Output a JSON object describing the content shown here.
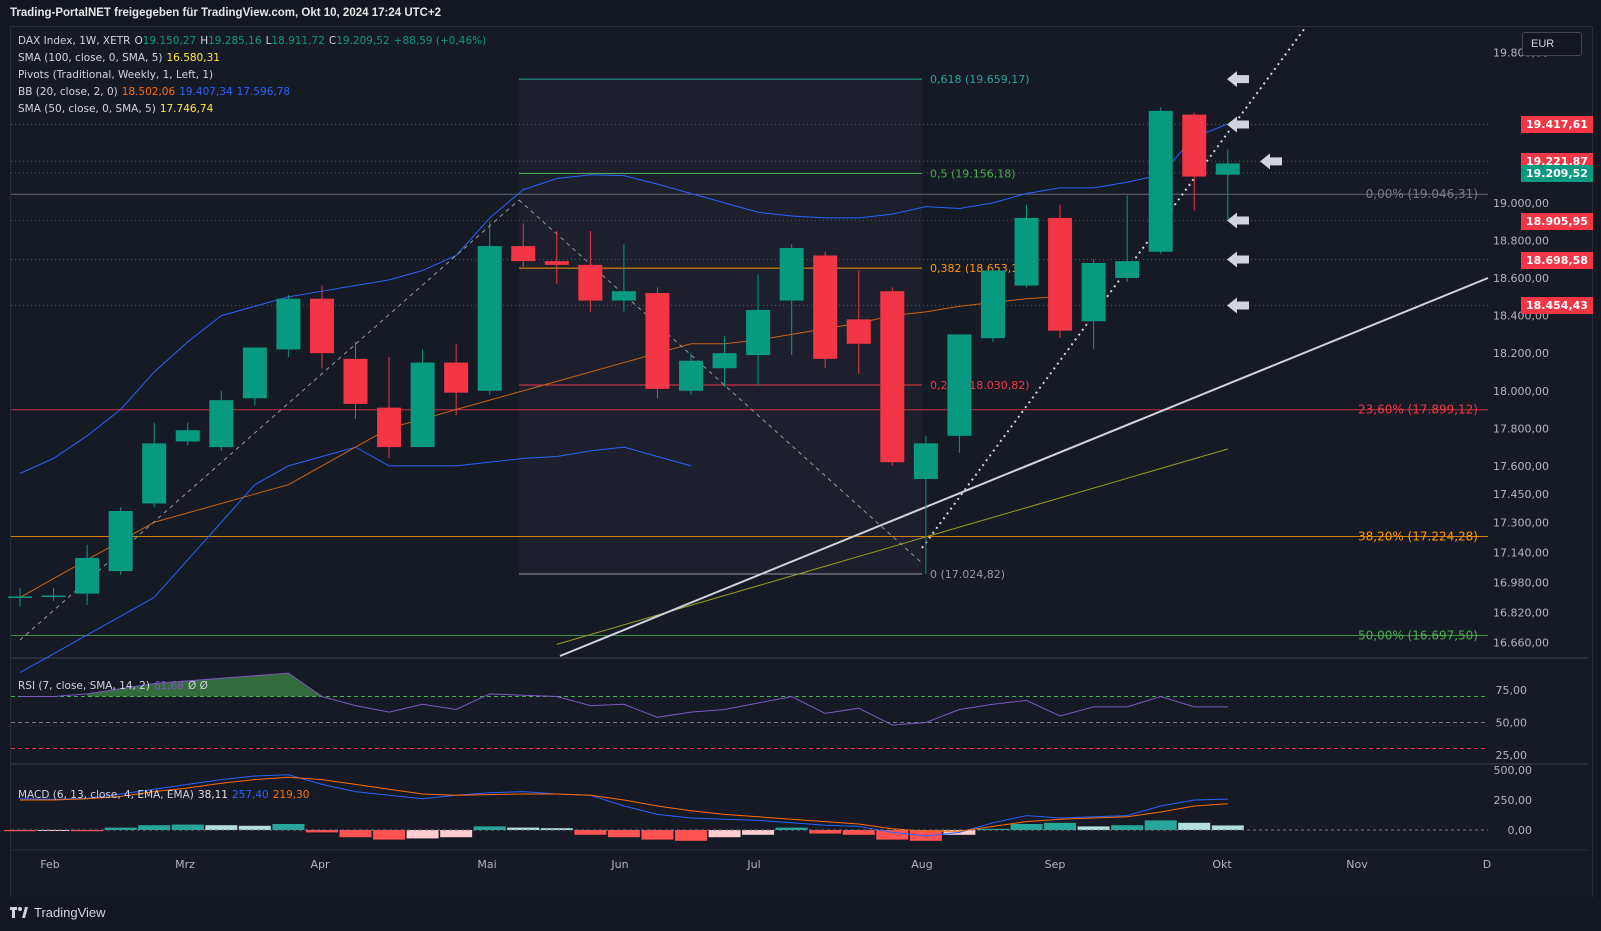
{
  "header": {
    "title": "Trading-PortalNET freigegeben für TradingView.com, Okt 10, 2024 17:24 UTC+2"
  },
  "currency": "EUR",
  "footer": {
    "brand": "TradingView"
  },
  "legend": {
    "main": {
      "name": "DAX Index, 1W, XETR",
      "o_label": "O",
      "o": "19.150,27",
      "h_label": "H",
      "h": "19.285,16",
      "l_label": "L",
      "l": "18.911,72",
      "c_label": "C",
      "c": "19.209,52",
      "chg": "+88,59 (+0,46%)"
    },
    "sma100": {
      "name": "SMA (100, close, 0, SMA, 5)",
      "value": "16.580,31"
    },
    "pivots": {
      "name": "Pivots (Traditional, Weekly, 1, Left, 1)"
    },
    "bb": {
      "name": "BB (20, close, 2, 0)",
      "v1": "18.502,06",
      "v2": "19.407,34",
      "v3": "17.596,78"
    },
    "sma50": {
      "name": "SMA (50, close, 0, SMA, 5)",
      "value": "17.746,74"
    },
    "rsi": {
      "name": "RSI (7, close, SMA, 14, 2)",
      "value": "61,68",
      "extra": "Ø Ø"
    },
    "macd": {
      "name": "MACD (6, 13, close, 4, EMA, EMA)",
      "v1": "38,11",
      "v2": "257,40",
      "v3": "219,30"
    }
  },
  "colors": {
    "up": "#089981",
    "down": "#f23645",
    "bb": "#2962ff",
    "sma50": "#e8a317",
    "sma100": "#b8b84a",
    "rsi": "#7e57c2",
    "macd": "#2962ff",
    "signal": "#ff6d00"
  },
  "price_axis": {
    "min": 16580,
    "max": 19750,
    "ticks": [
      "19.800,00",
      "19.000,00",
      "18.800,00",
      "18.600,00",
      "18.400,00",
      "18.200,00",
      "18.000,00",
      "17.800,00",
      "17.600,00",
      "17.450,00",
      "17.300,00",
      "17.140,00",
      "16.980,00",
      "16.820,00",
      "16.660,00"
    ]
  },
  "price_tags": [
    {
      "value": "19.417,61",
      "price": 19417.61,
      "color": "#f23645"
    },
    {
      "value": "19.221,87",
      "price": 19221.87,
      "color": "#f23645"
    },
    {
      "value": "19.209,52",
      "price": 19160,
      "color": "#089981"
    },
    {
      "value": "18.905,95",
      "price": 18905.95,
      "color": "#f23645"
    },
    {
      "value": "18.698,58",
      "price": 18698.58,
      "color": "#f23645"
    },
    {
      "value": "18.454,43",
      "price": 18454.43,
      "color": "#f23645"
    }
  ],
  "fib_short": [
    {
      "label": "0,618 (19.659,17)",
      "price": 19659.17,
      "color": "#26a69a"
    },
    {
      "label": "0,5 (19.156,18)",
      "price": 19156.18,
      "color": "#4caf50"
    },
    {
      "label": "0,382 (18.653,1",
      "price": 18653.1,
      "color": "#ff9800"
    },
    {
      "label": "0,236 (18.030,82)",
      "price": 18030.82,
      "color": "#f23645"
    },
    {
      "label": "0 (17.024,82)",
      "price": 17024.82,
      "color": "#9598a1"
    }
  ],
  "fib_long": [
    {
      "label": "0,00% (19.046,31)",
      "price": 19046.31,
      "color": "#787b86"
    },
    {
      "label": "23,60% (17.899,12)",
      "price": 17899.12,
      "color": "#f23645"
    },
    {
      "label": "38,20% (17.224,28)",
      "price": 17224.28,
      "color": "#ff9800"
    },
    {
      "label": "50,00% (16.697,50)",
      "price": 16697.5,
      "color": "#4caf50"
    }
  ],
  "time_axis": [
    "Feb",
    "Mrz",
    "Apr",
    "Mai",
    "Jun",
    "Jul",
    "Aug",
    "Sep",
    "Okt",
    "Nov",
    "D"
  ],
  "rsi_axis": [
    "75,00",
    "50,00",
    "25,00"
  ],
  "macd_axis": [
    "500,00",
    "250,00",
    "0,00"
  ],
  "chart_data": {
    "type": "candlestick",
    "title": "DAX Index, 1W, XETR",
    "candles": [
      {
        "o": 16900,
        "h": 16950,
        "l": 16850,
        "c": 16905
      },
      {
        "o": 16905,
        "h": 16950,
        "l": 16880,
        "c": 16910
      },
      {
        "o": 16920,
        "h": 17180,
        "l": 16860,
        "c": 17110
      },
      {
        "o": 17040,
        "h": 17380,
        "l": 17020,
        "c": 17360
      },
      {
        "o": 17400,
        "h": 17830,
        "l": 17380,
        "c": 17720
      },
      {
        "o": 17730,
        "h": 17830,
        "l": 17710,
        "c": 17790
      },
      {
        "o": 17700,
        "h": 18000,
        "l": 17680,
        "c": 17950
      },
      {
        "o": 17960,
        "h": 18230,
        "l": 17920,
        "c": 18230
      },
      {
        "o": 18220,
        "h": 18510,
        "l": 18180,
        "c": 18490
      },
      {
        "o": 18490,
        "h": 18560,
        "l": 18120,
        "c": 18200
      },
      {
        "o": 18170,
        "h": 18260,
        "l": 17850,
        "c": 17930
      },
      {
        "o": 17910,
        "h": 18180,
        "l": 17640,
        "c": 17700
      },
      {
        "o": 17700,
        "h": 18220,
        "l": 17700,
        "c": 18150
      },
      {
        "o": 18150,
        "h": 18250,
        "l": 17870,
        "c": 17990
      },
      {
        "o": 18000,
        "h": 18900,
        "l": 17980,
        "c": 18770
      },
      {
        "o": 18770,
        "h": 18890,
        "l": 18660,
        "c": 18690
      },
      {
        "o": 18690,
        "h": 18850,
        "l": 18570,
        "c": 18670
      },
      {
        "o": 18670,
        "h": 18850,
        "l": 18420,
        "c": 18480
      },
      {
        "o": 18480,
        "h": 18780,
        "l": 18420,
        "c": 18530
      },
      {
        "o": 18520,
        "h": 18550,
        "l": 17960,
        "c": 18010
      },
      {
        "o": 18000,
        "h": 18200,
        "l": 17980,
        "c": 18160
      },
      {
        "o": 18120,
        "h": 18290,
        "l": 18020,
        "c": 18200
      },
      {
        "o": 18190,
        "h": 18620,
        "l": 18030,
        "c": 18430
      },
      {
        "o": 18480,
        "h": 18780,
        "l": 18190,
        "c": 18760
      },
      {
        "o": 18720,
        "h": 18740,
        "l": 18120,
        "c": 18170
      },
      {
        "o": 18380,
        "h": 18640,
        "l": 18090,
        "c": 18250
      },
      {
        "o": 18530,
        "h": 18550,
        "l": 17600,
        "c": 17620
      },
      {
        "o": 17530,
        "h": 17760,
        "l": 17025,
        "c": 17720
      },
      {
        "o": 17760,
        "h": 18300,
        "l": 17670,
        "c": 18300
      },
      {
        "o": 18280,
        "h": 18650,
        "l": 18260,
        "c": 18640
      },
      {
        "o": 18560,
        "h": 18990,
        "l": 18550,
        "c": 18920
      },
      {
        "o": 18920,
        "h": 18990,
        "l": 18280,
        "c": 18320
      },
      {
        "o": 18370,
        "h": 18700,
        "l": 18220,
        "c": 18680
      },
      {
        "o": 18600,
        "h": 19040,
        "l": 18580,
        "c": 18690
      },
      {
        "o": 18740,
        "h": 19510,
        "l": 18730,
        "c": 19490
      },
      {
        "o": 19470,
        "h": 19480,
        "l": 18960,
        "c": 19140
      },
      {
        "o": 19150,
        "h": 19285,
        "l": 18912,
        "c": 19210
      }
    ]
  }
}
